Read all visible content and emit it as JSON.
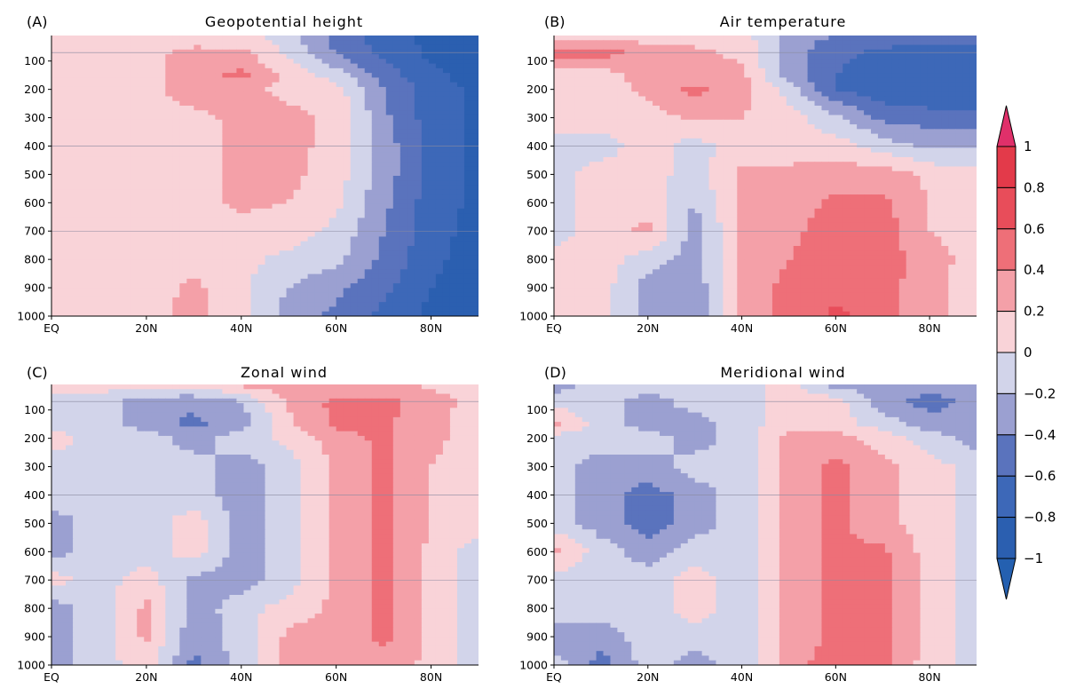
{
  "chart_data": {
    "type": "heatmap",
    "subtype": "filled-contour",
    "x_ticks": [
      "EQ",
      "20N",
      "40N",
      "60N",
      "80N"
    ],
    "x_tick_values": [
      0,
      20,
      40,
      60,
      80
    ],
    "xlim": [
      0,
      90
    ],
    "y_ticks": [
      "100",
      "200",
      "300",
      "400",
      "500",
      "600",
      "700",
      "800",
      "900",
      "1000"
    ],
    "y_tick_values": [
      100,
      200,
      300,
      400,
      500,
      600,
      700,
      800,
      900,
      1000
    ],
    "ylim": [
      1000,
      10
    ],
    "reference_lines": [
      70,
      400,
      700
    ],
    "grid_note": "latitudes 0-90 step 10; pressures top to bottom",
    "lats": [
      0,
      10,
      20,
      30,
      40,
      50,
      60,
      70,
      80,
      90
    ],
    "pressures": [
      10,
      70,
      150,
      200,
      300,
      400,
      500,
      600,
      700,
      800,
      900,
      1000
    ],
    "colorbar": {
      "levels": [
        -1,
        -0.8,
        -0.6,
        -0.4,
        -0.2,
        0,
        0.2,
        0.4,
        0.6,
        0.8,
        1
      ],
      "labels": [
        "1",
        "0.8",
        "0.6",
        "0.4",
        "0.2",
        "0",
        "−0.2",
        "−0.4",
        "−0.6",
        "−0.8",
        "−1"
      ],
      "colors": [
        "#2b5fb0",
        "#3d68b8",
        "#5a73bd",
        "#9ba0d1",
        "#d2d4ea",
        "#f9d3d8",
        "#f4a0a8",
        "#ee6f78",
        "#e84d5a",
        "#e33a4a"
      ],
      "under_color": "#2460b0",
      "over_color": "#e0306a"
    },
    "panels": [
      {
        "label": "(A)",
        "title": "Geopotential height",
        "values": [
          [
            0.1,
            0.1,
            0.1,
            0.1,
            0.05,
            -0.1,
            -0.5,
            -0.7,
            -0.85,
            -0.9
          ],
          [
            0.1,
            0.1,
            0.15,
            0.25,
            0.25,
            -0.05,
            -0.4,
            -0.65,
            -0.85,
            -0.9
          ],
          [
            0.1,
            0.1,
            0.15,
            0.3,
            0.45,
            0.15,
            -0.1,
            -0.5,
            -0.75,
            -0.9
          ],
          [
            0.1,
            0.1,
            0.15,
            0.3,
            0.25,
            0.15,
            0.1,
            -0.4,
            -0.7,
            -0.85
          ],
          [
            0.1,
            0.1,
            0.1,
            0.15,
            0.25,
            0.25,
            0.15,
            -0.35,
            -0.7,
            -0.85
          ],
          [
            0.1,
            0.1,
            0.1,
            0.1,
            0.25,
            0.25,
            0.15,
            -0.3,
            -0.65,
            -0.85
          ],
          [
            0.1,
            0.1,
            0.1,
            0.1,
            0.25,
            0.25,
            0.1,
            -0.3,
            -0.65,
            -0.85
          ],
          [
            0.1,
            0.1,
            0.1,
            0.1,
            0.25,
            0.2,
            0.05,
            -0.35,
            -0.7,
            -0.85
          ],
          [
            0.1,
            0.1,
            0.1,
            0.1,
            0.1,
            0.1,
            -0.05,
            -0.4,
            -0.7,
            -0.9
          ],
          [
            0.1,
            0.1,
            0.1,
            0.1,
            0.05,
            -0.05,
            -0.15,
            -0.45,
            -0.75,
            -0.9
          ],
          [
            0.1,
            0.1,
            0.1,
            0.25,
            0.05,
            -0.2,
            -0.35,
            -0.55,
            -0.8,
            -0.9
          ],
          [
            0.1,
            0.15,
            0.15,
            0.25,
            0.05,
            -0.3,
            -0.45,
            -0.65,
            -0.85,
            -0.9
          ]
        ]
      },
      {
        "label": "(B)",
        "title": "Air temperature",
        "values": [
          [
            0.1,
            0.1,
            0.1,
            0.1,
            0.1,
            -0.3,
            -0.4,
            -0.45,
            -0.5,
            -0.5
          ],
          [
            0.5,
            0.5,
            0.3,
            0.25,
            0.15,
            -0.3,
            -0.55,
            -0.65,
            -0.7,
            -0.7
          ],
          [
            0.1,
            0.1,
            0.3,
            0.3,
            0.25,
            -0.3,
            -0.6,
            -0.7,
            -0.75,
            -0.75
          ],
          [
            0.1,
            0.1,
            0.25,
            0.45,
            0.3,
            -0.1,
            -0.6,
            -0.75,
            -0.8,
            -0.8
          ],
          [
            0.1,
            0.1,
            0.1,
            0.25,
            0.2,
            0.1,
            -0.15,
            -0.45,
            -0.5,
            -0.5
          ],
          [
            -0.1,
            -0.1,
            0.1,
            -0.1,
            0.1,
            0.1,
            0.1,
            -0.1,
            -0.25,
            -0.25
          ],
          [
            -0.1,
            0.1,
            0.1,
            -0.1,
            0.25,
            0.25,
            0.3,
            0.3,
            0.15,
            0.1
          ],
          [
            -0.1,
            0.1,
            0.1,
            -0.2,
            0.25,
            0.3,
            0.45,
            0.45,
            0.2,
            0.1
          ],
          [
            -0.1,
            0.1,
            0.25,
            -0.3,
            0.25,
            0.35,
            0.5,
            0.5,
            0.2,
            0.1
          ],
          [
            0.1,
            0.1,
            -0.1,
            -0.3,
            0.25,
            0.4,
            0.5,
            0.5,
            0.3,
            0.1
          ],
          [
            0.1,
            0.1,
            -0.3,
            -0.35,
            0.3,
            0.45,
            0.5,
            0.5,
            0.25,
            0.1
          ],
          [
            0.1,
            0.1,
            -0.3,
            -0.35,
            0.3,
            0.45,
            0.65,
            0.5,
            0.25,
            0.1
          ]
        ]
      },
      {
        "label": "(C)",
        "title": "Zonal wind",
        "values": [
          [
            0.1,
            0.1,
            0.1,
            0.1,
            0.25,
            0.3,
            0.25,
            0.25,
            0.15,
            0.1
          ],
          [
            -0.1,
            -0.1,
            -0.3,
            -0.35,
            -0.2,
            0.25,
            0.45,
            0.45,
            0.3,
            0.1
          ],
          [
            -0.1,
            -0.1,
            -0.3,
            -0.45,
            -0.3,
            0.15,
            0.45,
            0.45,
            0.25,
            0.1
          ],
          [
            0.1,
            -0.1,
            -0.1,
            -0.3,
            -0.1,
            0.05,
            0.3,
            0.45,
            0.25,
            0.1
          ],
          [
            -0.1,
            -0.1,
            -0.1,
            -0.1,
            -0.3,
            -0.1,
            0.25,
            0.45,
            0.2,
            0.1
          ],
          [
            -0.1,
            -0.1,
            -0.1,
            -0.1,
            -0.3,
            -0.1,
            0.25,
            0.45,
            0.2,
            0.1
          ],
          [
            -0.3,
            -0.1,
            -0.1,
            0.1,
            -0.3,
            -0.1,
            0.25,
            0.45,
            0.2,
            0.1
          ],
          [
            -0.3,
            -0.1,
            -0.1,
            0.1,
            -0.3,
            -0.1,
            0.25,
            0.45,
            0.15,
            -0.1
          ],
          [
            0.1,
            -0.1,
            0.1,
            -0.25,
            -0.3,
            -0.1,
            0.25,
            0.45,
            0.15,
            -0.1
          ],
          [
            -0.3,
            -0.1,
            0.25,
            -0.3,
            -0.1,
            0.1,
            0.25,
            0.45,
            0.15,
            -0.1
          ],
          [
            -0.3,
            -0.1,
            0.25,
            -0.35,
            -0.1,
            0.25,
            0.25,
            0.45,
            0.15,
            -0.1
          ],
          [
            -0.3,
            -0.1,
            0.1,
            -0.45,
            -0.1,
            0.25,
            0.25,
            0.3,
            0.15,
            -0.1
          ]
        ]
      },
      {
        "label": "(D)",
        "title": "Meridional wind",
        "values": [
          [
            -0.3,
            -0.1,
            -0.1,
            -0.1,
            -0.1,
            0.1,
            -0.3,
            -0.3,
            -0.3,
            -0.3
          ],
          [
            -0.1,
            -0.1,
            -0.3,
            -0.1,
            -0.1,
            0.1,
            0.1,
            -0.3,
            -0.5,
            -0.3
          ],
          [
            0.25,
            -0.1,
            -0.3,
            -0.3,
            -0.1,
            0.1,
            0.1,
            -0.1,
            -0.3,
            -0.3
          ],
          [
            -0.1,
            -0.1,
            -0.1,
            -0.3,
            -0.1,
            0.25,
            0.3,
            0.1,
            -0.1,
            -0.3
          ],
          [
            -0.1,
            -0.3,
            -0.3,
            -0.1,
            -0.1,
            0.25,
            0.45,
            0.25,
            0.1,
            -0.1
          ],
          [
            -0.1,
            -0.3,
            -0.5,
            -0.3,
            -0.1,
            0.25,
            0.45,
            0.25,
            0.1,
            -0.1
          ],
          [
            -0.1,
            -0.3,
            -0.5,
            -0.3,
            -0.1,
            0.25,
            0.45,
            0.25,
            0.1,
            -0.1
          ],
          [
            0.25,
            -0.1,
            -0.3,
            -0.1,
            -0.1,
            0.25,
            0.45,
            0.45,
            0.1,
            -0.1
          ],
          [
            -0.1,
            -0.1,
            -0.1,
            0.1,
            -0.1,
            0.25,
            0.45,
            0.45,
            0.15,
            -0.1
          ],
          [
            -0.1,
            -0.1,
            -0.1,
            0.1,
            -0.1,
            0.25,
            0.45,
            0.45,
            0.15,
            -0.1
          ],
          [
            -0.3,
            -0.3,
            -0.1,
            -0.1,
            -0.1,
            0.25,
            0.45,
            0.45,
            0.15,
            -0.1
          ],
          [
            -0.1,
            -0.5,
            -0.1,
            -0.3,
            -0.1,
            0.25,
            0.6,
            0.45,
            0.1,
            -0.1
          ]
        ]
      }
    ]
  }
}
